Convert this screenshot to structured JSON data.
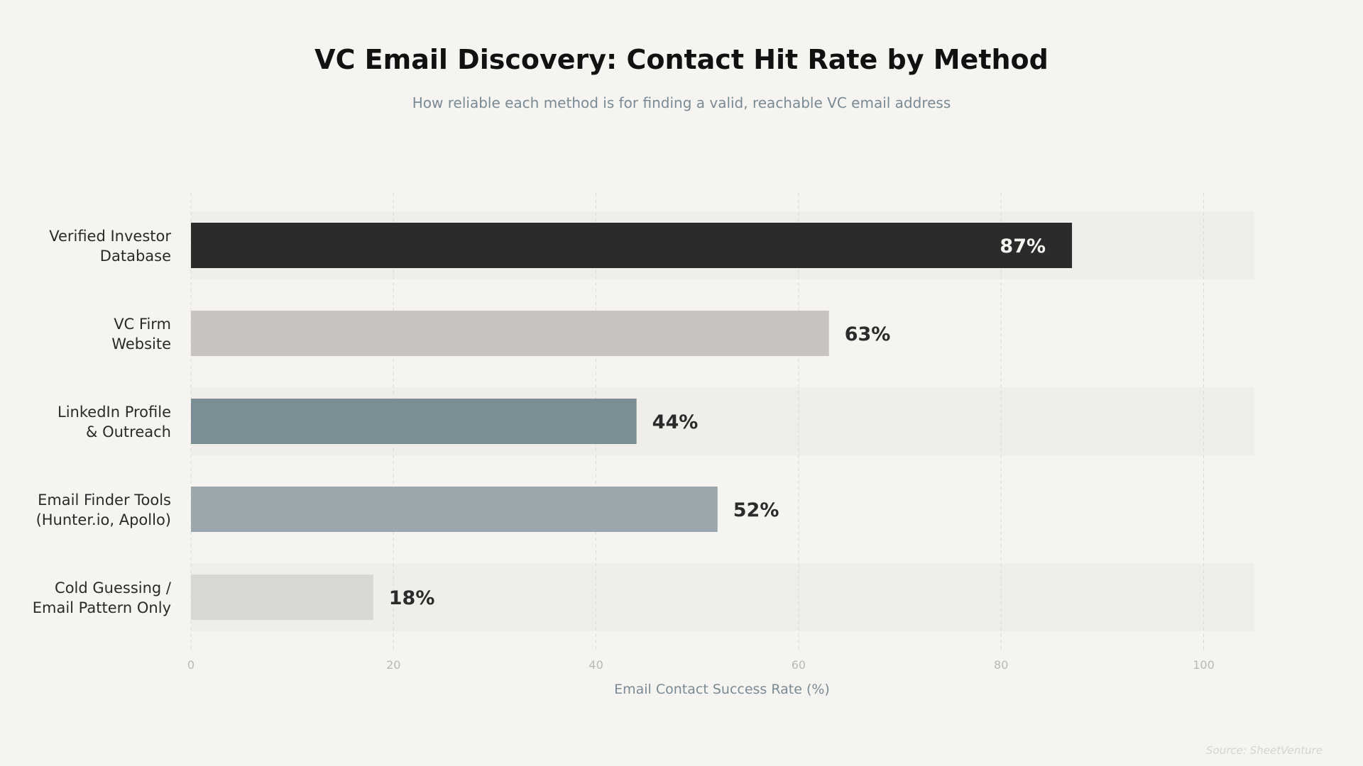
{
  "chart_data": {
    "type": "bar",
    "orientation": "horizontal",
    "title": "VC Email Discovery: Contact Hit Rate by Method",
    "subtitle": "How reliable each method is for finding a valid, reachable VC email address",
    "xlabel": "Email Contact Success Rate (%)",
    "ylabel": "",
    "xlim": [
      0,
      105
    ],
    "xticks": [
      0,
      20,
      40,
      60,
      80,
      100
    ],
    "grid": "vertical dashed",
    "categories": [
      [
        "Verified Investor",
        "Database"
      ],
      [
        "VC Firm",
        "Website"
      ],
      [
        "LinkedIn Profile",
        "& Outreach"
      ],
      [
        "Email Finder Tools",
        "(Hunter.io, Apollo)"
      ],
      [
        "Cold Guessing /",
        "Email Pattern Only"
      ]
    ],
    "values": [
      87,
      63,
      44,
      52,
      18
    ],
    "value_labels": [
      "87%",
      "63%",
      "44%",
      "52%",
      "18%"
    ],
    "colors": [
      "#2b2b2b",
      "#c7c4bf",
      "#7b8d95",
      "#9aa7ac",
      "#d9d7d3"
    ],
    "label_colors": [
      "#f5f4f0",
      "#2b2b2b",
      "#2b2b2b",
      "#2b2b2b",
      "#2b2b2b"
    ],
    "label_inside": [
      true,
      false,
      false,
      false,
      false
    ],
    "source": "Source: SheetVenture"
  },
  "colors": {
    "background": "#f5f4f0",
    "row_band": "#efeeea",
    "grid": "#dddbd6"
  }
}
